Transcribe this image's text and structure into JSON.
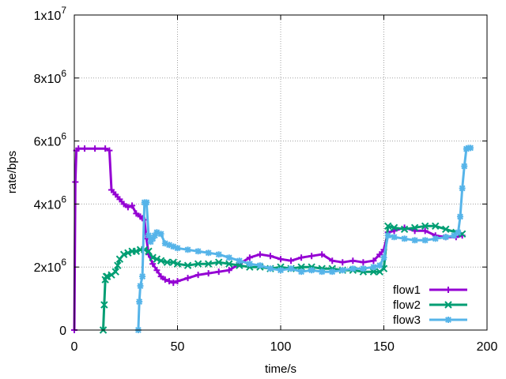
{
  "chart_data": {
    "type": "line",
    "xlabel": "time/s",
    "ylabel": "rate/bps",
    "xlim": [
      0,
      200
    ],
    "ylim": [
      0,
      10000000
    ],
    "grid": true,
    "legend_position": "bottom-right",
    "x_ticks": [
      {
        "value": 0,
        "label": "0"
      },
      {
        "value": 50,
        "label": "50"
      },
      {
        "value": 100,
        "label": "100"
      },
      {
        "value": 150,
        "label": "150"
      },
      {
        "value": 200,
        "label": "200"
      }
    ],
    "y_ticks": [
      {
        "value": 0,
        "label": "0",
        "exp": ""
      },
      {
        "value": 2000000,
        "label": "2x10",
        "exp": "6"
      },
      {
        "value": 4000000,
        "label": "4x10",
        "exp": "6"
      },
      {
        "value": 6000000,
        "label": "6x10",
        "exp": "6"
      },
      {
        "value": 8000000,
        "label": "8x10",
        "exp": "6"
      },
      {
        "value": 10000000,
        "label": "1x10",
        "exp": "7"
      }
    ],
    "series": [
      {
        "name": "flow1",
        "color": "#9400d3",
        "marker": "plus",
        "x": [
          0,
          0.5,
          1,
          2,
          5,
          10,
          15,
          17,
          18,
          20,
          22,
          24,
          26,
          28,
          30,
          32,
          33,
          34,
          35,
          36,
          38,
          40,
          42,
          44,
          46,
          48,
          50,
          55,
          60,
          65,
          70,
          75,
          80,
          85,
          90,
          95,
          100,
          105,
          110,
          115,
          120,
          125,
          130,
          135,
          140,
          145,
          148,
          150,
          152,
          155,
          160,
          165,
          170,
          175,
          180,
          185,
          188
        ],
        "y": [
          0,
          4700000,
          5700000,
          5760000,
          5760000,
          5760000,
          5760000,
          5700000,
          4450000,
          4300000,
          4150000,
          4000000,
          3900000,
          3950000,
          3700000,
          3600000,
          3550000,
          3500000,
          2900000,
          2400000,
          2100000,
          1900000,
          1700000,
          1600000,
          1550000,
          1500000,
          1550000,
          1650000,
          1750000,
          1800000,
          1850000,
          1900000,
          2100000,
          2300000,
          2400000,
          2350000,
          2250000,
          2200000,
          2300000,
          2350000,
          2400000,
          2200000,
          2150000,
          2200000,
          2150000,
          2200000,
          2400000,
          2550000,
          3100000,
          3150000,
          3250000,
          3150000,
          3150000,
          3000000,
          2950000,
          2950000,
          3000000
        ]
      },
      {
        "name": "flow2",
        "color": "#009e73",
        "marker": "cross",
        "x": [
          14,
          14.5,
          15,
          15.5,
          16,
          18,
          20,
          21,
          22,
          24,
          26,
          28,
          30,
          32,
          34,
          36,
          38,
          40,
          42,
          45,
          48,
          50,
          55,
          60,
          65,
          70,
          75,
          80,
          85,
          90,
          95,
          100,
          105,
          110,
          115,
          120,
          125,
          130,
          135,
          140,
          145,
          148,
          150,
          152,
          155,
          160,
          165,
          170,
          175,
          180,
          185,
          188
        ],
        "y": [
          0,
          800000,
          1600000,
          1700000,
          1700000,
          1750000,
          1850000,
          2050000,
          2250000,
          2400000,
          2450000,
          2500000,
          2500000,
          2550000,
          2550000,
          2500000,
          2300000,
          2250000,
          2200000,
          2150000,
          2150000,
          2100000,
          2050000,
          2100000,
          2100000,
          2150000,
          2100000,
          2050000,
          2000000,
          2000000,
          1950000,
          2000000,
          1950000,
          2000000,
          2000000,
          1950000,
          1950000,
          1900000,
          1900000,
          1850000,
          1850000,
          1850000,
          1950000,
          3300000,
          3250000,
          3200000,
          3250000,
          3300000,
          3300000,
          3200000,
          3100000,
          3050000
        ]
      },
      {
        "name": "flow3",
        "color": "#56b4e9",
        "marker": "asterisk",
        "x": [
          31,
          31.5,
          32,
          33,
          34,
          35,
          36,
          37,
          38,
          39,
          40,
          42,
          44,
          46,
          48,
          50,
          55,
          60,
          65,
          70,
          75,
          80,
          85,
          90,
          95,
          100,
          105,
          110,
          115,
          120,
          125,
          130,
          135,
          140,
          145,
          148,
          150,
          152,
          155,
          160,
          165,
          170,
          175,
          180,
          184,
          186,
          187,
          188,
          189,
          190,
          191,
          192
        ],
        "y": [
          0,
          900000,
          1400000,
          1700000,
          4050000,
          4050000,
          3000000,
          2800000,
          2900000,
          3000000,
          3100000,
          3050000,
          2750000,
          2700000,
          2650000,
          2600000,
          2550000,
          2500000,
          2450000,
          2400000,
          2300000,
          2200000,
          2100000,
          2050000,
          1950000,
          1900000,
          1950000,
          1850000,
          1900000,
          1850000,
          1850000,
          1900000,
          1950000,
          1950000,
          2000000,
          2050000,
          2300000,
          3000000,
          2950000,
          2900000,
          2850000,
          2850000,
          2900000,
          2950000,
          3000000,
          3100000,
          3600000,
          4500000,
          5200000,
          5750000,
          5780000,
          5780000
        ]
      }
    ]
  }
}
